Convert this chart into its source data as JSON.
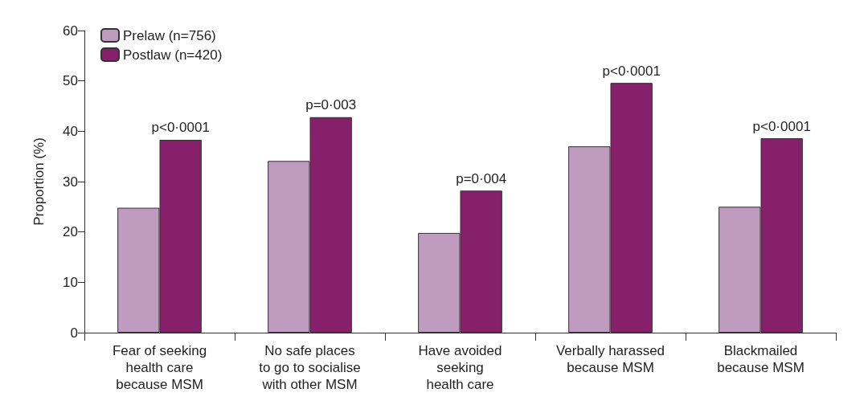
{
  "chart_data": {
    "type": "bar",
    "ylabel": "Proportion (%)",
    "categories": [
      "Fear of seeking\nhealth care\nbecause MSM",
      "No safe places\nto go to socialise\nwith other MSM",
      "Have avoided\nseeking\nhealth care",
      "Verbally harassed\nbecause MSM",
      "Blackmailed\nbecause MSM"
    ],
    "series": [
      {
        "name": "Prelaw (n=756)",
        "color": "#c09bc0",
        "values": [
          24.8,
          34.1,
          19.8,
          37.0,
          25.0
        ]
      },
      {
        "name": "Postlaw (n=420)",
        "color": "#86206a",
        "values": [
          38.3,
          42.8,
          28.2,
          49.6,
          38.6
        ]
      }
    ],
    "ylim": [
      0,
      60
    ],
    "yticks": [
      0,
      10,
      20,
      30,
      40,
      50,
      60
    ],
    "grid": false,
    "legend": "top left",
    "annotations": [
      {
        "text": "p<0·0001",
        "x": "Fear of seeking\nhealth care\nbecause MSM",
        "y": 38.3
      },
      {
        "text": "p=0·003",
        "x": "No safe places\nto go to socialise\nwith other MSM",
        "y": 42.8
      },
      {
        "text": "p=0·004",
        "x": "Have avoided\nseeking\nhealth care",
        "y": 28.2
      },
      {
        "text": "p<0·0001",
        "x": "Verbally harassed\nbecause MSM",
        "y": 49.6
      },
      {
        "text": "p<0·0001",
        "x": "Blackmailed\nbecause MSM",
        "y": 38.6
      }
    ]
  }
}
